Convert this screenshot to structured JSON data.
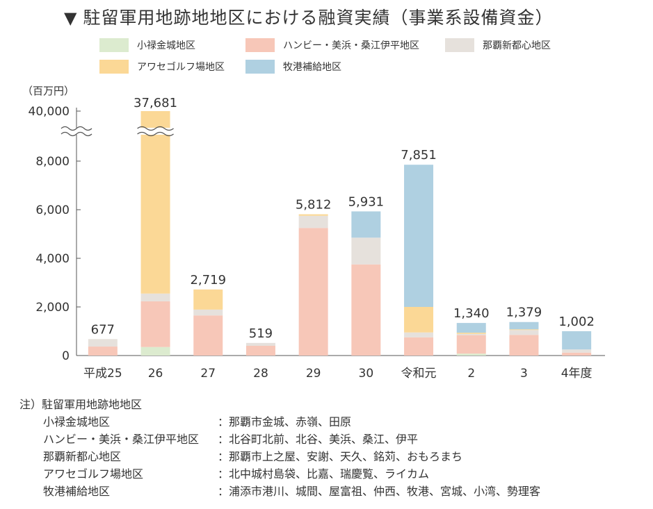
{
  "title": "駐留軍用地跡地地区における融資実績（事業系設備資金）",
  "title_marker": "▼",
  "legend": [
    {
      "label": "小禄金城地区",
      "color": "#dcebcf"
    },
    {
      "label": "ハンビー・美浜・桑江伊平地区",
      "color": "#f7c7b8"
    },
    {
      "label": "那覇新都心地区",
      "color": "#e6e1dc"
    },
    {
      "label": "アワセゴルフ場地区",
      "color": "#fbd896"
    },
    {
      "label": "牧港補給地区",
      "color": "#afd0e1"
    }
  ],
  "chart_data": {
    "type": "bar",
    "stacked": true,
    "unit": "（百万円）",
    "y_ticks": [
      "40,000",
      "8,000",
      "6,000",
      "4,000",
      "2,000",
      "0"
    ],
    "y_axis_break": {
      "below": 8000,
      "resumes_at": 40000
    },
    "categories": [
      "平成25",
      "26",
      "27",
      "28",
      "29",
      "30",
      "令和元",
      "2",
      "3",
      "4年度"
    ],
    "totals": [
      677,
      37681,
      2719,
      519,
      5812,
      5931,
      7851,
      1340,
      1379,
      1002
    ],
    "total_labels": [
      "677",
      "37,681",
      "2,719",
      "519",
      "5,812",
      "5,931",
      "7,851",
      "1,340",
      "1,379",
      "1,002"
    ],
    "series": [
      {
        "name": "小禄金城地区",
        "values": [
          0,
          350,
          0,
          0,
          0,
          0,
          0,
          80,
          0,
          0
        ]
      },
      {
        "name": "ハンビー・美浜・桑江伊平地区",
        "values": [
          370,
          1880,
          1650,
          400,
          5250,
          3750,
          750,
          760,
          850,
          120
        ]
      },
      {
        "name": "那覇新都心地区",
        "values": [
          307,
          320,
          240,
          119,
          500,
          1100,
          200,
          50,
          200,
          130
        ]
      },
      {
        "name": "アワセゴルフ場地区",
        "values": [
          0,
          35131,
          829,
          0,
          62,
          0,
          1050,
          50,
          29,
          0
        ]
      },
      {
        "name": "牧港補給地区",
        "values": [
          0,
          0,
          0,
          0,
          0,
          1081,
          5851,
          400,
          300,
          752
        ]
      }
    ]
  },
  "notes": {
    "header": "注）駐留軍用地跡地地区",
    "items": [
      {
        "name": "小禄金城地区",
        "desc": "：那覇市金城、赤嶺、田原"
      },
      {
        "name": "ハンビー・美浜・桑江伊平地区",
        "desc": "：北谷町北前、北谷、美浜、桑江、伊平"
      },
      {
        "name": "那覇新都心地区",
        "desc": "：那覇市上之屋、安謝、天久、銘苅、おもろまち"
      },
      {
        "name": "アワセゴルフ場地区",
        "desc": "：北中城村島袋、比嘉、瑞慶覧、ライカム"
      },
      {
        "name": "牧港補給地区",
        "desc": "：浦添市港川、城間、屋富祖、仲西、牧港、宮城、小湾、勢理客"
      }
    ]
  }
}
